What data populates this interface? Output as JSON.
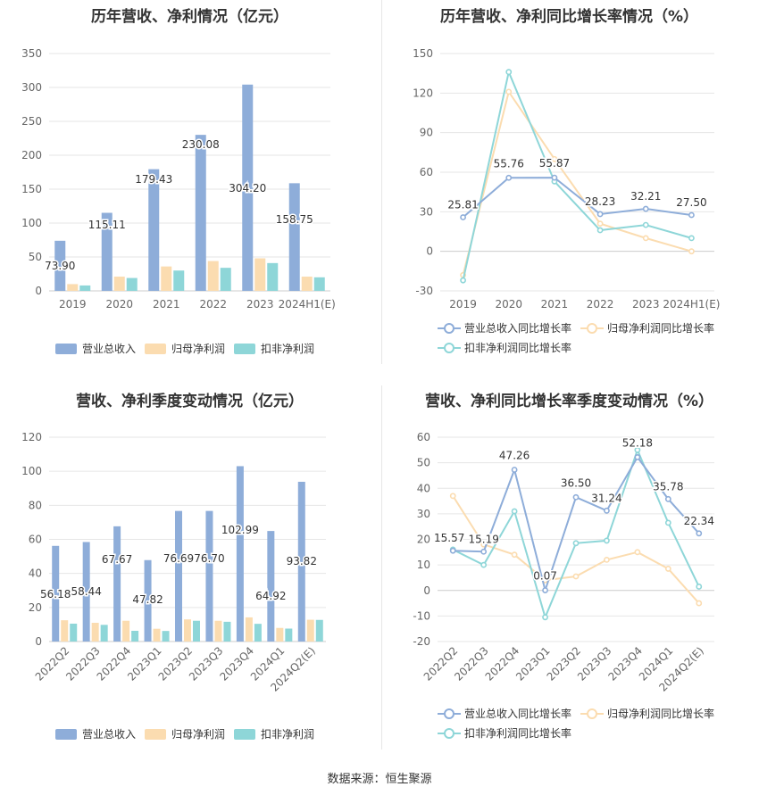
{
  "source_text": "数据来源：恒生聚源",
  "chart_data": [
    {
      "type": "bar",
      "title": "历年营收、净利情况（亿元）",
      "categories": [
        "2019",
        "2020",
        "2021",
        "2022",
        "2023",
        "2024H1(E)"
      ],
      "ylim": [
        0,
        350
      ],
      "yticks": [
        0,
        50,
        100,
        150,
        200,
        250,
        300,
        350
      ],
      "grid": true,
      "legend_position": "bottom",
      "series": [
        {
          "name": "营业总收入",
          "color": "#8eadd9",
          "values": [
            73.9,
            115.11,
            179.43,
            230.08,
            304.2,
            158.75
          ],
          "labels": [
            "73.90",
            "115.11",
            "179.43",
            "230.08",
            "304.20",
            "158.75"
          ]
        },
        {
          "name": "归母净利润",
          "color": "#fbdcb0",
          "values": [
            10,
            21,
            36,
            44,
            48,
            21
          ]
        },
        {
          "name": "扣非净利润",
          "color": "#8ed6d8",
          "values": [
            8,
            19,
            30,
            34,
            41,
            20
          ]
        }
      ]
    },
    {
      "type": "line",
      "title": "历年营收、净利同比增长率情况（%）",
      "categories": [
        "2019",
        "2020",
        "2021",
        "2022",
        "2023",
        "2024H1(E)"
      ],
      "ylim": [
        -30,
        150
      ],
      "yticks": [
        -30,
        0,
        30,
        60,
        90,
        120,
        150
      ],
      "grid": true,
      "legend_position": "bottom",
      "series": [
        {
          "name": "营业总收入同比增长率",
          "color": "#8eadd9",
          "values": [
            25.81,
            55.76,
            55.87,
            28.23,
            32.21,
            27.5
          ],
          "labels": [
            "25.81",
            "55.76",
            "55.87",
            "28.23",
            "32.21",
            "27.50"
          ]
        },
        {
          "name": "归母净利润同比增长率",
          "color": "#fbdcb0",
          "values": [
            -18,
            121,
            70,
            21,
            10,
            0
          ]
        },
        {
          "name": "扣非净利润同比增长率",
          "color": "#8ed6d8",
          "values": [
            -22,
            136,
            53,
            16,
            20,
            10
          ]
        }
      ]
    },
    {
      "type": "bar",
      "title": "营收、净利季度变动情况（亿元）",
      "categories": [
        "2022Q2",
        "2022Q3",
        "2022Q4",
        "2023Q1",
        "2023Q2",
        "2023Q3",
        "2023Q4",
        "2024Q1",
        "2024Q2(E)"
      ],
      "ylim": [
        0,
        120
      ],
      "yticks": [
        0,
        20,
        40,
        60,
        80,
        100,
        120
      ],
      "grid": true,
      "legend_position": "bottom",
      "series": [
        {
          "name": "营业总收入",
          "color": "#8eadd9",
          "values": [
            56.18,
            58.44,
            67.67,
            47.82,
            76.69,
            76.7,
            102.99,
            64.92,
            93.82
          ],
          "labels": [
            "56.18",
            "58.44",
            "67.67",
            "47.82",
            "76.69",
            "76.70",
            "102.99",
            "64.92",
            "93.82"
          ]
        },
        {
          "name": "归母净利润",
          "color": "#fbdcb0",
          "values": [
            12.5,
            11,
            12.2,
            7.5,
            13,
            12.2,
            14.2,
            8,
            12.8
          ]
        },
        {
          "name": "扣非净利润",
          "color": "#8ed6d8",
          "values": [
            10.5,
            9.8,
            6.3,
            6.2,
            12.2,
            11.6,
            10.4,
            7.6,
            12.7
          ]
        }
      ]
    },
    {
      "type": "line",
      "title": "营收、净利同比增长率季度变动情况（%）",
      "categories": [
        "2022Q2",
        "2022Q3",
        "2022Q4",
        "2023Q1",
        "2023Q2",
        "2023Q3",
        "2023Q4",
        "2024Q1",
        "2024Q2(E)"
      ],
      "ylim": [
        -20,
        60
      ],
      "yticks": [
        -20,
        -10,
        0,
        10,
        20,
        30,
        40,
        50,
        60
      ],
      "grid": true,
      "legend_position": "bottom",
      "series": [
        {
          "name": "营业总收入同比增长率",
          "color": "#8eadd9",
          "values": [
            15.57,
            15.19,
            47.26,
            0.07,
            36.5,
            31.24,
            52.18,
            35.78,
            22.34
          ],
          "labels": [
            "15.57",
            "15.19",
            "47.26",
            "0.07",
            "36.50",
            "31.24",
            "52.18",
            "35.78",
            "22.34"
          ]
        },
        {
          "name": "归母净利润同比增长率",
          "color": "#fbdcb0",
          "values": [
            37,
            18,
            14,
            4,
            5.5,
            12,
            15,
            8.5,
            -5
          ]
        },
        {
          "name": "扣非净利润同比增长率",
          "color": "#8ed6d8",
          "values": [
            16,
            10,
            31,
            -10.5,
            18.5,
            19.5,
            55,
            26.5,
            1.5
          ]
        }
      ]
    }
  ]
}
